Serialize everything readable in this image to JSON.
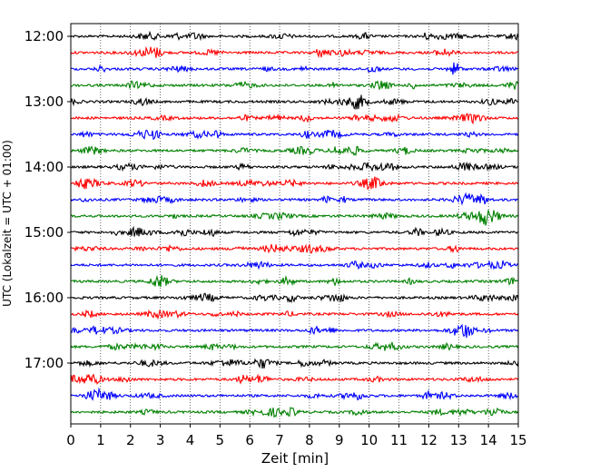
{
  "chart_data": {
    "type": "line",
    "subtype": "helicorder",
    "xlabel": "Zeit  [min]",
    "ylabel": "UTC (Lokalzeit = UTC + 01:00)",
    "xlim": [
      0,
      15
    ],
    "x_ticks": [
      "0",
      "1",
      "2",
      "3",
      "4",
      "5",
      "6",
      "7",
      "8",
      "9",
      "10",
      "11",
      "12",
      "13",
      "14",
      "15"
    ],
    "y_ticks": [
      "12:00",
      "13:00",
      "14:00",
      "15:00",
      "16:00",
      "17:00"
    ],
    "grid": {
      "x": true,
      "style": "dotted"
    },
    "trace_start": "12:00",
    "trace_interval_min": 15,
    "trace_count": 24,
    "trace_colors": [
      "#000000",
      "#ff0000",
      "#0000ff",
      "#008000"
    ]
  }
}
